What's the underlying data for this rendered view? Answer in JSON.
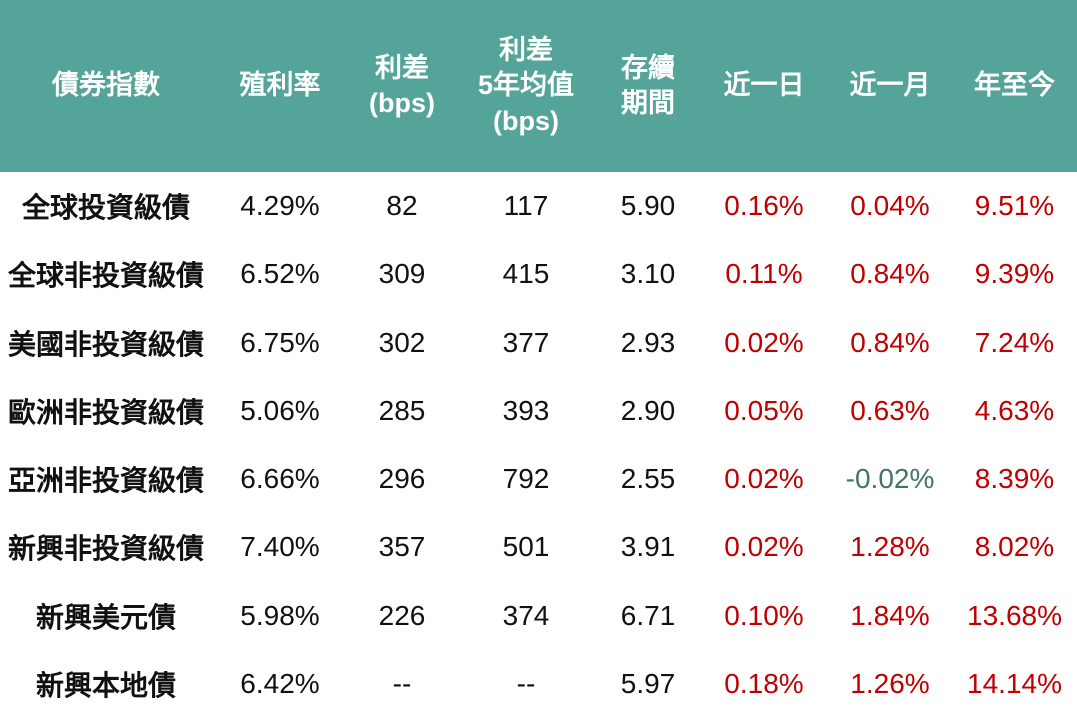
{
  "colors": {
    "header_bg": "#55a49a",
    "header_text": "#ffffff",
    "body_text": "#111111",
    "positive": "#c00000",
    "negative": "#40746c"
  },
  "table": {
    "columns": [
      {
        "label": "債券指數"
      },
      {
        "label": "殖利率"
      },
      {
        "label": "利差\n(bps)"
      },
      {
        "label": "利差\n5年均值\n(bps)"
      },
      {
        "label": "存續\n期間"
      },
      {
        "label": "近一日"
      },
      {
        "label": "近一月"
      },
      {
        "label": "年至今"
      }
    ],
    "rows": [
      [
        "全球投資級債",
        "4.29%",
        "82",
        "117",
        "5.90",
        "0.16%",
        "0.04%",
        "9.51%"
      ],
      [
        "全球非投資級債",
        "6.52%",
        "309",
        "415",
        "3.10",
        "0.11%",
        "0.84%",
        "9.39%"
      ],
      [
        "美國非投資級債",
        "6.75%",
        "302",
        "377",
        "2.93",
        "0.02%",
        "0.84%",
        "7.24%"
      ],
      [
        "歐洲非投資級債",
        "5.06%",
        "285",
        "393",
        "2.90",
        "0.05%",
        "0.63%",
        "4.63%"
      ],
      [
        "亞洲非投資級債",
        "6.66%",
        "296",
        "792",
        "2.55",
        "0.02%",
        "-0.02%",
        "8.39%"
      ],
      [
        "新興非投資級債",
        "7.40%",
        "357",
        "501",
        "3.91",
        "0.02%",
        "1.28%",
        "8.02%"
      ],
      [
        "新興美元債",
        "5.98%",
        "226",
        "374",
        "6.71",
        "0.10%",
        "1.84%",
        "13.68%"
      ],
      [
        "新興本地債",
        "6.42%",
        "--",
        "--",
        "5.97",
        "0.18%",
        "1.26%",
        "14.14%"
      ]
    ]
  }
}
